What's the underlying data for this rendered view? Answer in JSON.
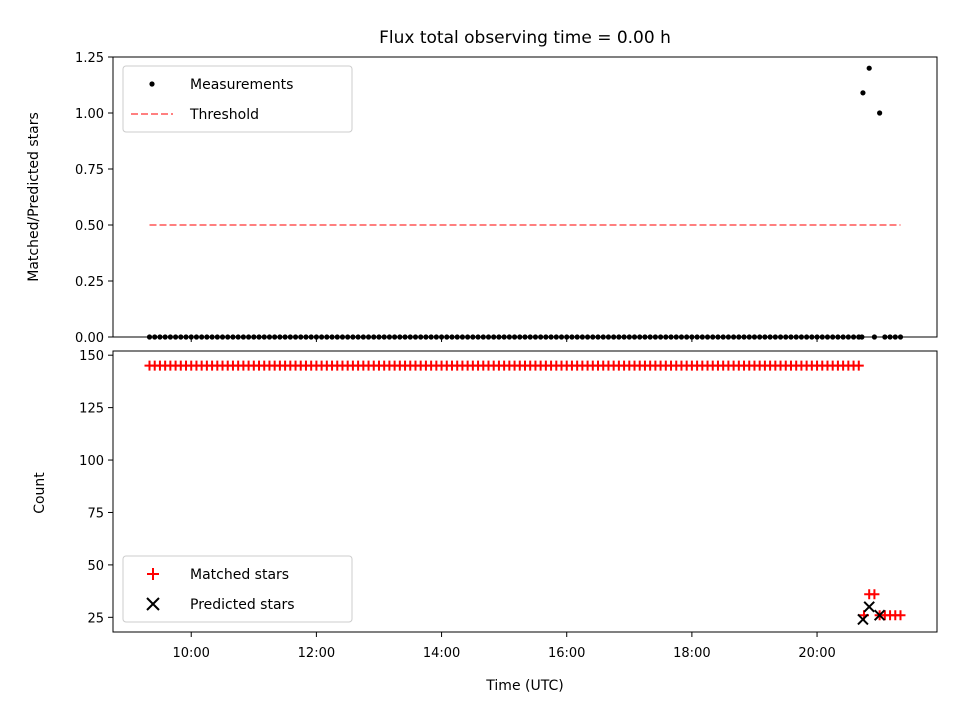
{
  "colors": {
    "measurement": "#000000",
    "threshold": "#ff8080",
    "matched": "#ff0000",
    "predicted": "#000000"
  },
  "chart_data": [
    {
      "type": "scatter",
      "title": "Flux total observing time = 0.00 h",
      "xlabel": "",
      "ylabel": "Matched/Predicted stars",
      "ylim": [
        0.0,
        1.25
      ],
      "yticks": [
        0.0,
        0.25,
        0.5,
        0.75,
        1.0,
        1.25
      ],
      "ytick_labels": [
        "0.00",
        "0.25",
        "0.50",
        "0.75",
        "1.00",
        "1.25"
      ],
      "legend": [
        "Measurements",
        "Threshold"
      ],
      "legend_position": "upper left",
      "series": [
        {
          "name": "Measurements",
          "marker": "dot",
          "points": [
            {
              "x": "09:20",
              "y": 0.0
            },
            {
              "x": "20:43",
              "y": 0.0
            },
            {
              "x": "20:44",
              "y": 1.09
            },
            {
              "x": "20:50",
              "y": 1.2
            },
            {
              "x": "20:55",
              "y": 0.0
            },
            {
              "x": "21:00",
              "y": 1.0
            },
            {
              "x": "21:05",
              "y": 0.0
            },
            {
              "x": "21:10",
              "y": 0.0
            },
            {
              "x": "21:15",
              "y": 0.0
            },
            {
              "x": "21:20",
              "y": 0.0
            }
          ]
        },
        {
          "name": "Threshold",
          "style": "dashed",
          "x_range": [
            "09:20",
            "21:20"
          ],
          "y": 0.5
        }
      ]
    },
    {
      "type": "scatter",
      "xlabel": "Time (UTC)",
      "ylabel": "Count",
      "ylim": [
        18,
        152
      ],
      "yticks": [
        25,
        50,
        75,
        100,
        125,
        150
      ],
      "ytick_labels": [
        "25",
        "50",
        "75",
        "100",
        "125",
        "150"
      ],
      "xticks": [
        "10:00",
        "12:00",
        "14:00",
        "16:00",
        "18:00",
        "20:00"
      ],
      "xlim": [
        "08:45",
        "21:55"
      ],
      "legend": [
        "Matched stars",
        "Predicted stars"
      ],
      "legend_position": "lower left",
      "series": [
        {
          "name": "Matched stars",
          "marker": "plus",
          "points": [
            {
              "x": "09:20",
              "y": 145
            },
            {
              "x": "20:40",
              "y": 145
            },
            {
              "x": "20:45",
              "y": 26
            },
            {
              "x": "20:50",
              "y": 36
            },
            {
              "x": "20:55",
              "y": 36
            },
            {
              "x": "21:00",
              "y": 26
            },
            {
              "x": "21:05",
              "y": 26
            },
            {
              "x": "21:10",
              "y": 26
            },
            {
              "x": "21:15",
              "y": 26
            },
            {
              "x": "21:20",
              "y": 26
            }
          ]
        },
        {
          "name": "Predicted stars",
          "marker": "x",
          "points": [
            {
              "x": "20:44",
              "y": 24
            },
            {
              "x": "20:50",
              "y": 30
            },
            {
              "x": "21:00",
              "y": 26
            }
          ]
        }
      ]
    }
  ]
}
